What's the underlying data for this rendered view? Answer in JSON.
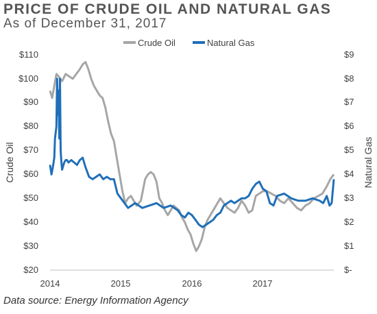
{
  "chart_data": {
    "type": "line",
    "title": "PRICE OF CRUDE OIL AND NATURAL GAS",
    "subtitle": "As of December 31, 2017",
    "source": "Data source: Energy Information Agency",
    "ylabel_left": "Crude Oil",
    "ylabel_right": "Natural Gas",
    "x_ticks": [
      "2014",
      "2015",
      "2016",
      "2017"
    ],
    "y_left_ticks": [
      "$110",
      "$100",
      "$90",
      "$80",
      "$70",
      "$60",
      "$50",
      "$40",
      "$30",
      "$20"
    ],
    "y_right_ticks": [
      "$9",
      "$8",
      "$7",
      "$6",
      "$5",
      "$4",
      "$3",
      "$2",
      "$1",
      "$-"
    ],
    "ylim_left": [
      20,
      110
    ],
    "ylim_right": [
      0,
      9
    ],
    "xlim": [
      2014.0,
      2018.0
    ],
    "legend_position": "top-center",
    "grid": false,
    "series": [
      {
        "name": "Crude Oil",
        "axis": "left",
        "color": "#a6a6a6",
        "x": [
          2014.0,
          2014.03,
          2014.06,
          2014.09,
          2014.12,
          2014.17,
          2014.22,
          2014.27,
          2014.32,
          2014.37,
          2014.42,
          2014.46,
          2014.5,
          2014.54,
          2014.58,
          2014.62,
          2014.66,
          2014.7,
          2014.74,
          2014.78,
          2014.82,
          2014.86,
          2014.9,
          2014.94,
          2014.98,
          2015.02,
          2015.06,
          2015.1,
          2015.14,
          2015.18,
          2015.22,
          2015.28,
          2015.34,
          2015.38,
          2015.42,
          2015.46,
          2015.5,
          2015.54,
          2015.58,
          2015.62,
          2015.66,
          2015.7,
          2015.74,
          2015.78,
          2015.82,
          2015.86,
          2015.9,
          2015.94,
          2015.98,
          2016.02,
          2016.06,
          2016.1,
          2016.14,
          2016.18,
          2016.22,
          2016.28,
          2016.34,
          2016.4,
          2016.45,
          2016.5,
          2016.55,
          2016.6,
          2016.65,
          2016.7,
          2016.75,
          2016.8,
          2016.85,
          2016.9,
          2016.95,
          2017.0,
          2017.06,
          2017.12,
          2017.18,
          2017.24,
          2017.3,
          2017.36,
          2017.42,
          2017.48,
          2017.54,
          2017.6,
          2017.66,
          2017.72,
          2017.78,
          2017.84,
          2017.9,
          2017.95,
          2018.0
        ],
        "y": [
          95,
          92,
          97,
          102,
          101,
          99,
          102,
          101,
          100,
          102,
          104,
          106,
          107,
          104,
          100,
          97,
          95,
          93,
          92,
          88,
          82,
          77,
          74,
          67,
          60,
          53,
          48,
          50,
          51,
          49,
          47,
          49,
          58,
          60,
          61,
          60,
          57,
          50,
          48,
          45,
          43,
          45,
          47,
          46,
          45,
          42,
          40,
          37,
          35,
          31,
          28,
          30,
          33,
          38,
          41,
          44,
          47,
          50,
          48,
          46,
          45,
          44,
          46,
          49,
          47,
          44,
          45,
          51,
          52,
          53,
          53,
          52,
          51,
          49,
          48,
          50,
          48,
          46,
          45,
          47,
          48,
          50,
          51,
          52,
          55,
          58,
          60
        ]
      },
      {
        "name": "Natural Gas",
        "axis": "right",
        "color": "#1f6fb8",
        "x": [
          2014.0,
          2014.02,
          2014.04,
          2014.06,
          2014.07,
          2014.09,
          2014.1,
          2014.11,
          2014.12,
          2014.13,
          2014.14,
          2014.15,
          2014.16,
          2014.17,
          2014.18,
          2014.2,
          2014.22,
          2014.24,
          2014.26,
          2014.3,
          2014.34,
          2014.38,
          2014.42,
          2014.46,
          2014.5,
          2014.55,
          2014.6,
          2014.65,
          2014.7,
          2014.75,
          2014.8,
          2014.85,
          2014.9,
          2014.95,
          2015.0,
          2015.05,
          2015.1,
          2015.15,
          2015.2,
          2015.3,
          2015.4,
          2015.5,
          2015.6,
          2015.7,
          2015.8,
          2015.85,
          2015.9,
          2015.95,
          2016.0,
          2016.05,
          2016.1,
          2016.15,
          2016.2,
          2016.25,
          2016.3,
          2016.35,
          2016.4,
          2016.45,
          2016.5,
          2016.55,
          2016.6,
          2016.65,
          2016.7,
          2016.75,
          2016.8,
          2016.85,
          2016.9,
          2016.95,
          2017.0,
          2017.05,
          2017.1,
          2017.15,
          2017.2,
          2017.3,
          2017.4,
          2017.5,
          2017.6,
          2017.7,
          2017.8,
          2017.85,
          2017.9,
          2017.94,
          2017.97,
          2018.0
        ],
        "y": [
          4.4,
          4.0,
          4.3,
          4.7,
          5.5,
          6.0,
          8.0,
          6.5,
          7.5,
          5.5,
          8.0,
          5.0,
          4.5,
          4.2,
          4.3,
          4.5,
          4.6,
          4.6,
          4.5,
          4.6,
          4.5,
          4.4,
          4.6,
          4.7,
          4.3,
          3.9,
          3.8,
          3.9,
          4.0,
          3.8,
          3.9,
          3.8,
          3.8,
          3.2,
          3.0,
          2.8,
          2.6,
          2.7,
          2.8,
          2.6,
          2.7,
          2.8,
          2.6,
          2.7,
          2.5,
          2.3,
          2.2,
          2.4,
          2.3,
          2.1,
          1.9,
          1.8,
          1.9,
          2.0,
          2.1,
          2.3,
          2.4,
          2.7,
          2.8,
          2.9,
          2.8,
          2.9,
          3.0,
          3.0,
          3.1,
          3.4,
          3.6,
          3.7,
          3.4,
          3.3,
          2.8,
          2.7,
          3.1,
          3.2,
          3.0,
          2.9,
          2.9,
          3.0,
          2.9,
          2.8,
          3.1,
          2.7,
          2.8,
          3.8
        ]
      }
    ]
  }
}
